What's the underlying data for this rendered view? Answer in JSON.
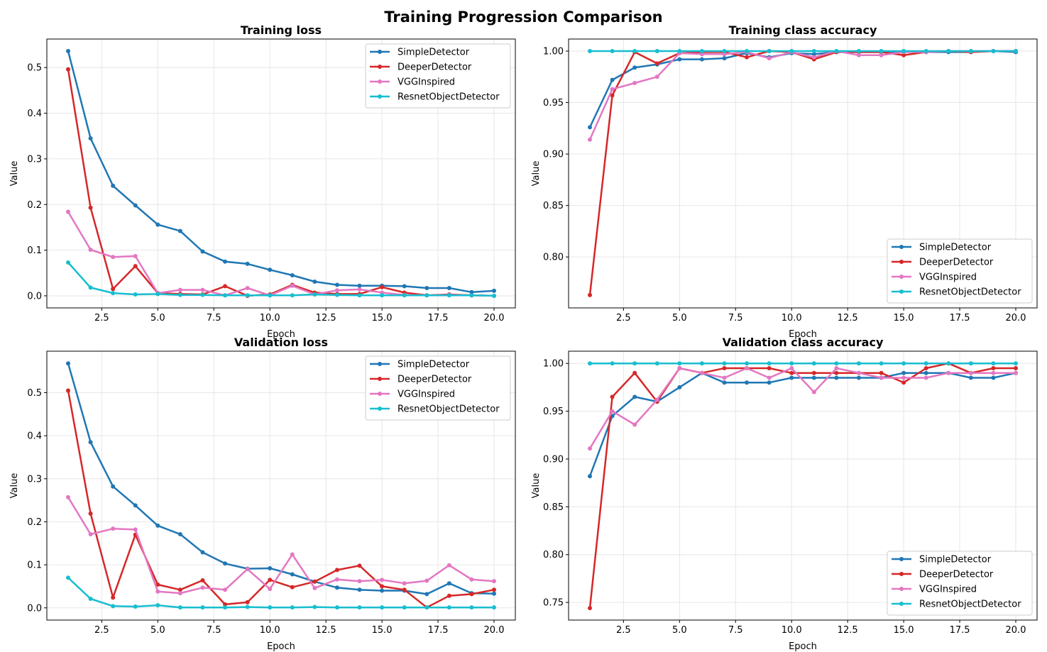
{
  "suptitle": "Training Progression Comparison",
  "colors": {
    "SimpleDetector": "#1f77b4",
    "DeeperDetector": "#d62728",
    "VGGInspired": "#e377c2",
    "ResnetObjectDetector": "#17becf",
    "grid": "#e6e6e6"
  },
  "chart_data": [
    {
      "type": "line",
      "title": "Training loss",
      "xlabel": "Epoch",
      "ylabel": "Value",
      "xlim": [
        0.05,
        20.95
      ],
      "ylim": [
        -0.0265,
        0.5625
      ],
      "xticks": [
        2.5,
        5.0,
        7.5,
        10.0,
        12.5,
        15.0,
        17.5,
        20.0
      ],
      "xtick_labels": [
        "2.5",
        "5.0",
        "7.5",
        "10.0",
        "12.5",
        "15.0",
        "17.5",
        "20.0"
      ],
      "yticks": [
        0.0,
        0.1,
        0.2,
        0.3,
        0.4,
        0.5
      ],
      "ytick_labels": [
        "0.0",
        "0.1",
        "0.2",
        "0.3",
        "0.4",
        "0.5"
      ],
      "grid": true,
      "legend": "upper right",
      "x": [
        1,
        2,
        3,
        4,
        5,
        6,
        7,
        8,
        9,
        10,
        11,
        12,
        13,
        14,
        15,
        16,
        17,
        18,
        19,
        20
      ],
      "series": [
        {
          "name": "SimpleDetector",
          "values": [
            0.536,
            0.345,
            0.241,
            0.198,
            0.156,
            0.142,
            0.097,
            0.075,
            0.07,
            0.057,
            0.045,
            0.031,
            0.024,
            0.022,
            0.022,
            0.021,
            0.017,
            0.017,
            0.008,
            0.011
          ]
        },
        {
          "name": "DeeperDetector",
          "values": [
            0.496,
            0.193,
            0.015,
            0.065,
            0.006,
            0.004,
            0.003,
            0.021,
            0.0,
            0.003,
            0.024,
            0.007,
            0.004,
            0.004,
            0.019,
            0.007,
            0.001,
            0.003,
            0.001,
            0.0
          ]
        },
        {
          "name": "VGGInspired",
          "values": [
            0.184,
            0.101,
            0.085,
            0.087,
            0.006,
            0.013,
            0.013,
            0.001,
            0.017,
            0.001,
            0.022,
            0.003,
            0.012,
            0.014,
            0.007,
            0.002,
            0.001,
            0.002,
            0.001,
            0.0
          ]
        },
        {
          "name": "ResnetObjectDetector",
          "values": [
            0.073,
            0.018,
            0.006,
            0.003,
            0.004,
            0.002,
            0.002,
            0.001,
            0.001,
            0.001,
            0.001,
            0.003,
            0.002,
            0.001,
            0.001,
            0.001,
            0.001,
            0.001,
            0.001,
            0.0
          ]
        }
      ]
    },
    {
      "type": "line",
      "title": "Training class accuracy",
      "xlabel": "Epoch",
      "ylabel": "Value",
      "xlim": [
        0.05,
        20.95
      ],
      "ylim": [
        0.7505,
        1.0117
      ],
      "xticks": [
        2.5,
        5.0,
        7.5,
        10.0,
        12.5,
        15.0,
        17.5,
        20.0
      ],
      "xtick_labels": [
        "2.5",
        "5.0",
        "7.5",
        "10.0",
        "12.5",
        "15.0",
        "17.5",
        "20.0"
      ],
      "yticks": [
        0.8,
        0.85,
        0.9,
        0.95,
        1.0
      ],
      "ytick_labels": [
        "0.80",
        "0.85",
        "0.90",
        "0.95",
        "1.00"
      ],
      "grid": true,
      "legend": "lower right",
      "x": [
        1,
        2,
        3,
        4,
        5,
        6,
        7,
        8,
        9,
        10,
        11,
        12,
        13,
        14,
        15,
        16,
        17,
        18,
        19,
        20
      ],
      "series": [
        {
          "name": "SimpleDetector",
          "values": [
            0.926,
            0.972,
            0.984,
            0.987,
            0.992,
            0.992,
            0.993,
            0.998,
            0.994,
            0.998,
            0.997,
            0.999,
            0.999,
            0.999,
            0.999,
            0.999,
            0.999,
            0.999,
            1.0,
            0.999
          ]
        },
        {
          "name": "DeeperDetector",
          "values": [
            0.763,
            0.957,
            0.999,
            0.988,
            0.998,
            0.999,
            0.999,
            0.994,
            1.0,
            0.999,
            0.992,
            0.999,
            0.999,
            0.999,
            0.996,
            0.999,
            1.0,
            0.999,
            1.0,
            1.0
          ]
        },
        {
          "name": "VGGInspired",
          "values": [
            0.914,
            0.963,
            0.969,
            0.975,
            0.998,
            0.997,
            0.997,
            0.999,
            0.993,
            0.999,
            0.994,
            1.0,
            0.996,
            0.996,
            0.999,
            0.999,
            1.0,
            1.0,
            1.0,
            1.0
          ]
        },
        {
          "name": "ResnetObjectDetector",
          "values": [
            1.0,
            1.0,
            1.0,
            1.0,
            1.0,
            1.0,
            1.0,
            1.0,
            1.0,
            1.0,
            1.0,
            1.0,
            1.0,
            1.0,
            1.0,
            1.0,
            1.0,
            1.0,
            1.0,
            1.0
          ]
        }
      ]
    },
    {
      "type": "line",
      "title": "Validation loss",
      "xlabel": "Epoch",
      "ylabel": "Value",
      "xlim": [
        0.05,
        20.95
      ],
      "ylim": [
        -0.0284,
        0.5964
      ],
      "xticks": [
        2.5,
        5.0,
        7.5,
        10.0,
        12.5,
        15.0,
        17.5,
        20.0
      ],
      "xtick_labels": [
        "2.5",
        "5.0",
        "7.5",
        "10.0",
        "12.5",
        "15.0",
        "17.5",
        "20.0"
      ],
      "yticks": [
        0.0,
        0.1,
        0.2,
        0.3,
        0.4,
        0.5
      ],
      "ytick_labels": [
        "0.0",
        "0.1",
        "0.2",
        "0.3",
        "0.4",
        "0.5"
      ],
      "grid": true,
      "legend": "upper right",
      "x": [
        1,
        2,
        3,
        4,
        5,
        6,
        7,
        8,
        9,
        10,
        11,
        12,
        13,
        14,
        15,
        16,
        17,
        18,
        19,
        20
      ],
      "series": [
        {
          "name": "SimpleDetector",
          "values": [
            0.568,
            0.385,
            0.282,
            0.238,
            0.191,
            0.171,
            0.129,
            0.103,
            0.091,
            0.092,
            0.078,
            0.061,
            0.047,
            0.042,
            0.04,
            0.04,
            0.032,
            0.057,
            0.034,
            0.033
          ]
        },
        {
          "name": "DeeperDetector",
          "values": [
            0.505,
            0.219,
            0.024,
            0.17,
            0.054,
            0.042,
            0.064,
            0.008,
            0.013,
            0.065,
            0.048,
            0.061,
            0.088,
            0.098,
            0.05,
            0.042,
            0.001,
            0.028,
            0.032,
            0.042
          ]
        },
        {
          "name": "VGGInspired",
          "values": [
            0.257,
            0.171,
            0.184,
            0.182,
            0.038,
            0.034,
            0.047,
            0.042,
            0.09,
            0.044,
            0.124,
            0.046,
            0.066,
            0.062,
            0.065,
            0.057,
            0.063,
            0.099,
            0.066,
            0.062
          ]
        },
        {
          "name": "ResnetObjectDetector",
          "values": [
            0.07,
            0.021,
            0.004,
            0.003,
            0.006,
            0.001,
            0.001,
            0.001,
            0.002,
            0.001,
            0.001,
            0.002,
            0.001,
            0.001,
            0.001,
            0.001,
            0.001,
            0.001,
            0.001,
            0.001
          ]
        }
      ]
    },
    {
      "type": "line",
      "title": "Validation class accuracy",
      "xlabel": "Epoch",
      "ylabel": "Value",
      "xlim": [
        0.05,
        20.95
      ],
      "ylim": [
        0.7315,
        1.0128
      ],
      "xticks": [
        2.5,
        5.0,
        7.5,
        10.0,
        12.5,
        15.0,
        17.5,
        20.0
      ],
      "xtick_labels": [
        "2.5",
        "5.0",
        "7.5",
        "10.0",
        "12.5",
        "15.0",
        "17.5",
        "20.0"
      ],
      "yticks": [
        0.75,
        0.8,
        0.85,
        0.9,
        0.95,
        1.0
      ],
      "ytick_labels": [
        "0.75",
        "0.80",
        "0.85",
        "0.90",
        "0.95",
        "1.00"
      ],
      "grid": true,
      "legend": "lower right",
      "x": [
        1,
        2,
        3,
        4,
        5,
        6,
        7,
        8,
        9,
        10,
        11,
        12,
        13,
        14,
        15,
        16,
        17,
        18,
        19,
        20
      ],
      "series": [
        {
          "name": "SimpleDetector",
          "values": [
            0.882,
            0.945,
            0.965,
            0.96,
            0.975,
            0.99,
            0.98,
            0.98,
            0.98,
            0.985,
            0.985,
            0.985,
            0.985,
            0.985,
            0.99,
            0.99,
            0.99,
            0.985,
            0.985,
            0.99
          ]
        },
        {
          "name": "DeeperDetector",
          "values": [
            0.744,
            0.965,
            0.99,
            0.96,
            0.995,
            0.99,
            0.995,
            0.995,
            0.995,
            0.99,
            0.99,
            0.99,
            0.99,
            0.99,
            0.98,
            0.995,
            1.0,
            0.99,
            0.995,
            0.995
          ]
        },
        {
          "name": "VGGInspired",
          "values": [
            0.911,
            0.95,
            0.936,
            0.962,
            0.995,
            0.99,
            0.985,
            0.995,
            0.985,
            0.995,
            0.97,
            0.995,
            0.99,
            0.985,
            0.985,
            0.985,
            0.99,
            0.99,
            0.99,
            0.99
          ]
        },
        {
          "name": "ResnetObjectDetector",
          "values": [
            1.0,
            1.0,
            1.0,
            1.0,
            1.0,
            1.0,
            1.0,
            1.0,
            1.0,
            1.0,
            1.0,
            1.0,
            1.0,
            1.0,
            1.0,
            1.0,
            1.0,
            1.0,
            1.0,
            1.0
          ]
        }
      ]
    }
  ]
}
